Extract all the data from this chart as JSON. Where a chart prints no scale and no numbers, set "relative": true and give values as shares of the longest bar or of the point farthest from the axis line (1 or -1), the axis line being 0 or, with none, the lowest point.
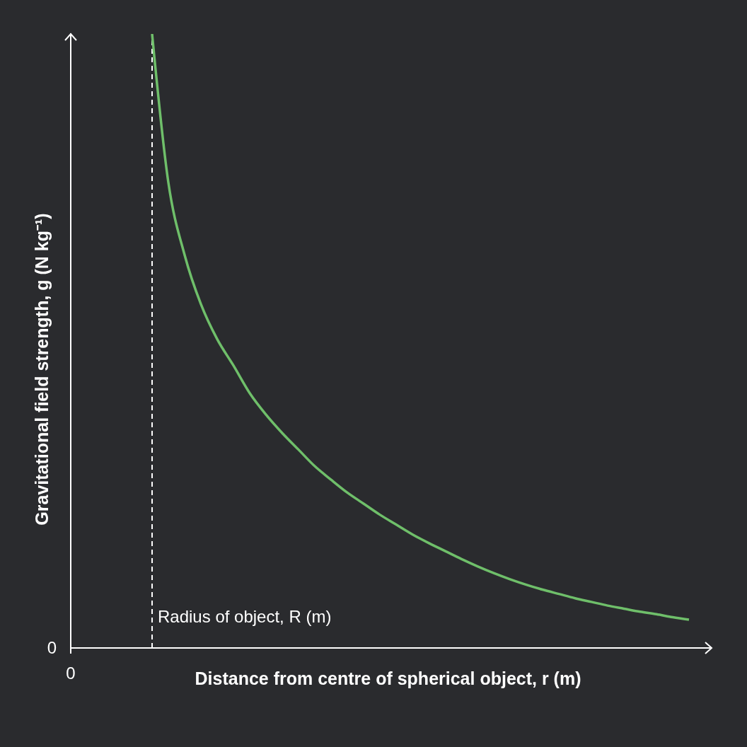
{
  "chart_data": {
    "type": "line",
    "relative": true,
    "xlabel": "Distance from centre of spherical object, r (m)",
    "ylabel": "Gravitational field strength, g (N kg⁻¹)",
    "categories": [
      null,
      null,
      null,
      null,
      null,
      null,
      null,
      null,
      null,
      null,
      null,
      null,
      null,
      null,
      null,
      null,
      null,
      null,
      null,
      null,
      null,
      null,
      null,
      null,
      null,
      null,
      null,
      null,
      null,
      null,
      null,
      null,
      null,
      null,
      null,
      null,
      null,
      null,
      null,
      null
    ],
    "series": [
      {
        "color": "#6fbf6a",
        "values": [
          null,
          null,
          null,
          null,
          null,
          1,
          0.758,
          0.64,
          0.56,
          0.503,
          0.46,
          0.415,
          0.38,
          0.35,
          0.323,
          0.296,
          0.274,
          0.253,
          0.235,
          0.217,
          0.201,
          0.185,
          0.171,
          0.158,
          0.145,
          0.133,
          0.122,
          0.112,
          0.103,
          0.095,
          0.088,
          0.081,
          0.075,
          0.069,
          0.064,
          0.059,
          0.055,
          0.05,
          0.046,
          null
        ]
      }
    ],
    "marker": "none",
    "annotations": [
      "0",
      "0",
      "Radius of object, R (m)"
    ]
  }
}
